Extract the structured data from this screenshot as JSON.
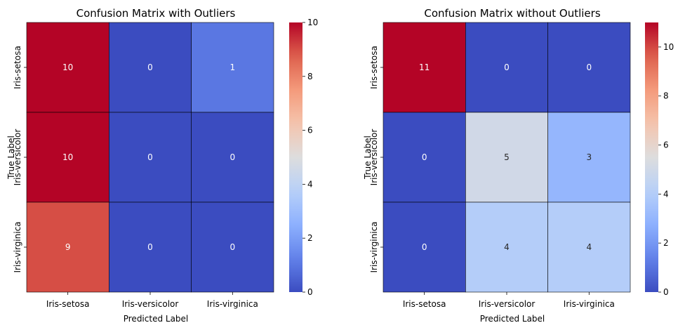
{
  "chart_data": [
    {
      "type": "heatmap",
      "title": "Confusion Matrix with Outliers",
      "xlabel": "Predicted Label",
      "ylabel": "True Label",
      "x_categories": [
        "Iris-setosa",
        "Iris-versicolor",
        "Iris-virginica"
      ],
      "y_categories": [
        "Iris-setosa",
        "Iris-versicolor",
        "Iris-virginica"
      ],
      "values": [
        [
          10,
          0,
          1
        ],
        [
          10,
          0,
          0
        ],
        [
          9,
          0,
          0
        ]
      ],
      "colormap": "coolwarm",
      "vmin": 0,
      "vmax": 10,
      "colorbar_ticks": [
        0,
        2,
        4,
        6,
        8,
        10
      ],
      "annotated": true
    },
    {
      "type": "heatmap",
      "title": "Confusion Matrix without Outliers",
      "xlabel": "Predicted Label",
      "ylabel": "True Label",
      "x_categories": [
        "Iris-setosa",
        "Iris-versicolor",
        "Iris-virginica"
      ],
      "y_categories": [
        "Iris-setosa",
        "Iris-versicolor",
        "Iris-virginica"
      ],
      "values": [
        [
          11,
          0,
          0
        ],
        [
          0,
          5,
          3
        ],
        [
          0,
          4,
          4
        ]
      ],
      "colormap": "coolwarm",
      "vmin": 0,
      "vmax": 11,
      "colorbar_ticks": [
        0,
        2,
        4,
        6,
        8,
        10
      ],
      "annotated": true
    }
  ]
}
